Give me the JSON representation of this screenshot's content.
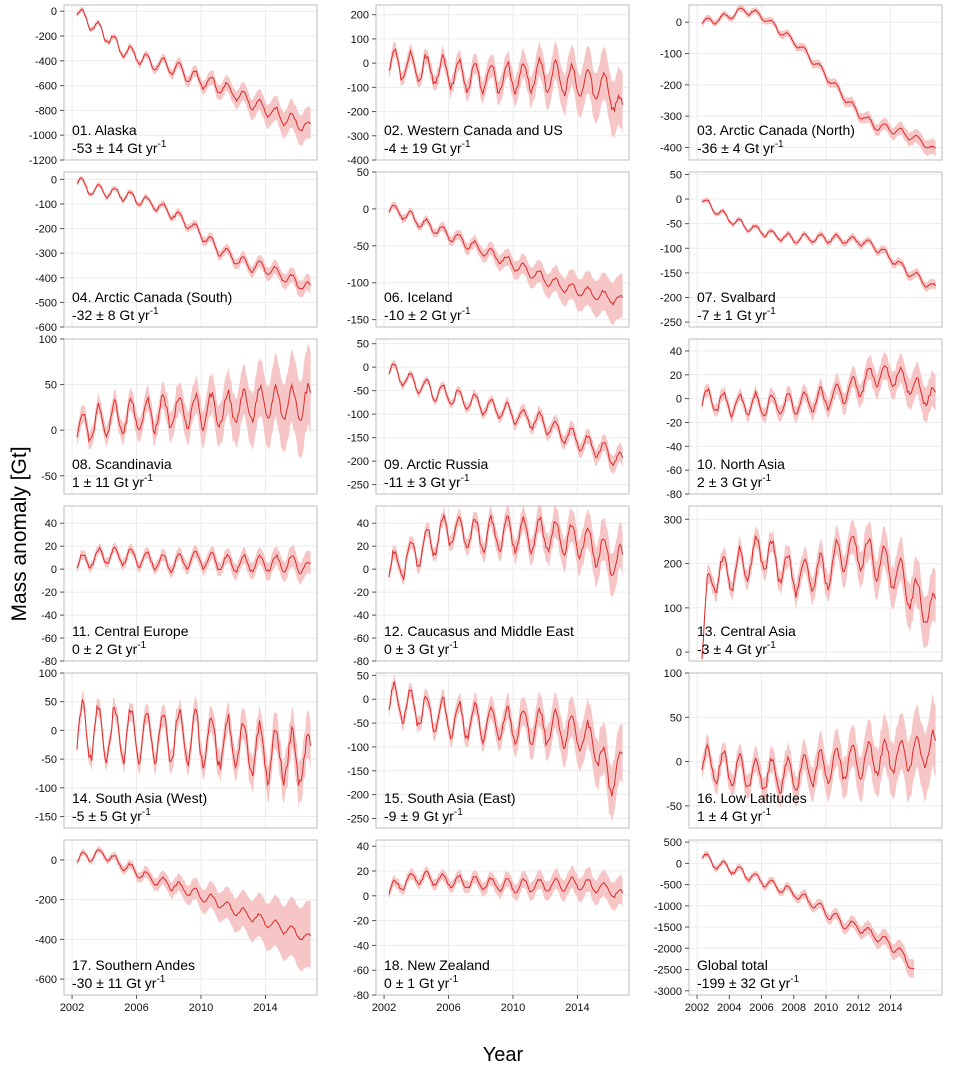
{
  "figure": {
    "ylabel": "Mass anomaly [Gt]",
    "xlabel": "Year"
  },
  "style": {
    "line_color": "#dd2a2a",
    "band_color": "#f6c6c6",
    "frame_color": "#bdbdbd",
    "grid_color": "#ececec"
  },
  "chart_data": [
    {
      "type": "line",
      "title": "01. Alaska",
      "rate": "-53 ± 14 Gt yr",
      "rate_unit_exp": "-1",
      "ylim": [
        -1200,
        50
      ],
      "yticks": [
        0,
        -200,
        -400,
        -600,
        -800,
        -1000,
        -1200
      ],
      "xticks": [],
      "x_range": [
        2002.3,
        2016.8
      ],
      "trend": {
        "x": [
          2002.3,
          2003,
          2004,
          2005,
          2006,
          2007,
          2008,
          2009,
          2010,
          2011,
          2012,
          2013,
          2014,
          2015,
          2016,
          2016.6
        ],
        "y": [
          0,
          -80,
          -180,
          -300,
          -360,
          -420,
          -440,
          -500,
          -560,
          -600,
          -650,
          -720,
          -790,
          -850,
          -900,
          -950
        ]
      },
      "seasonal_amplitude": 55,
      "band": [
        20,
        130
      ]
    },
    {
      "type": "line",
      "title": "02. Western Canada and US",
      "rate": "-4 ± 19 Gt yr",
      "rate_unit_exp": "-1",
      "ylim": [
        -400,
        240
      ],
      "yticks": [
        200,
        100,
        0,
        -100,
        -200,
        -300,
        -400
      ],
      "xticks": [],
      "x_range": [
        2002.3,
        2016.8
      ],
      "trend": {
        "x": [
          2002.3,
          2004,
          2006,
          2008,
          2010,
          2012,
          2014,
          2016,
          2016.6
        ],
        "y": [
          0,
          -20,
          -40,
          -60,
          -60,
          -50,
          -80,
          -100,
          -200
        ]
      },
      "seasonal_amplitude": 60,
      "band": [
        30,
        120
      ]
    },
    {
      "type": "line",
      "title": "03. Arctic Canada (North)",
      "rate": "-36 ± 4 Gt yr",
      "rate_unit_exp": "-1",
      "ylim": [
        -440,
        55
      ],
      "yticks": [
        0,
        -100,
        -200,
        -300,
        -400
      ],
      "xticks": [],
      "x_range": [
        2002.3,
        2016.8
      ],
      "trend": {
        "x": [
          2002.3,
          2003,
          2004,
          2005,
          2006,
          2007,
          2008,
          2009,
          2010,
          2011,
          2012,
          2013,
          2014,
          2015,
          2016,
          2016.6
        ],
        "y": [
          0,
          5,
          20,
          40,
          20,
          -20,
          -60,
          -110,
          -170,
          -230,
          -290,
          -330,
          -340,
          -360,
          -380,
          -410
        ]
      },
      "seasonal_amplitude": 12,
      "band": [
        10,
        25
      ]
    },
    {
      "type": "line",
      "title": "04. Arctic Canada (South)",
      "rate": "-32 ± 8 Gt yr",
      "rate_unit_exp": "-1",
      "ylim": [
        -600,
        30
      ],
      "yticks": [
        0,
        -100,
        -200,
        -300,
        -400,
        -500,
        -600
      ],
      "xticks": [],
      "x_range": [
        2002.3,
        2016.8
      ],
      "trend": {
        "x": [
          2002.3,
          2003,
          2004,
          2005,
          2006,
          2007,
          2008,
          2009,
          2010,
          2011,
          2012,
          2013,
          2014,
          2015,
          2016,
          2016.6
        ],
        "y": [
          0,
          -40,
          -50,
          -60,
          -80,
          -100,
          -130,
          -170,
          -220,
          -280,
          -320,
          -350,
          -360,
          -390,
          -420,
          -440
        ]
      },
      "seasonal_amplitude": 22,
      "band": [
        10,
        35
      ]
    },
    {
      "type": "line",
      "title": "06. Iceland",
      "rate": "-10 ± 2 Gt yr",
      "rate_unit_exp": "-1",
      "ylim": [
        -160,
        50
      ],
      "yticks": [
        50,
        0,
        -50,
        -100,
        -150
      ],
      "xticks": [],
      "x_range": [
        2002.3,
        2016.8
      ],
      "trend": {
        "x": [
          2002.3,
          2003,
          2004,
          2005,
          2006,
          2007,
          2008,
          2009,
          2010,
          2011,
          2012,
          2013,
          2014,
          2015,
          2016,
          2016.6
        ],
        "y": [
          0,
          -5,
          -15,
          -25,
          -35,
          -45,
          -55,
          -65,
          -75,
          -85,
          -95,
          -105,
          -110,
          -115,
          -120,
          -125
        ]
      },
      "seasonal_amplitude": 7,
      "band": [
        5,
        30
      ]
    },
    {
      "type": "line",
      "title": "07. Svalbard",
      "rate": "-7 ± 1 Gt yr",
      "rate_unit_exp": "-1",
      "ylim": [
        -260,
        55
      ],
      "yticks": [
        50,
        0,
        -50,
        -100,
        -150,
        -200,
        -250
      ],
      "xticks": [],
      "x_range": [
        2002.3,
        2016.8
      ],
      "trend": {
        "x": [
          2002.3,
          2003,
          2004,
          2005,
          2006,
          2007,
          2008,
          2009,
          2010,
          2011,
          2012,
          2013,
          2014,
          2015,
          2016,
          2016.6
        ],
        "y": [
          0,
          -20,
          -40,
          -55,
          -65,
          -75,
          -80,
          -80,
          -80,
          -82,
          -85,
          -95,
          -120,
          -145,
          -165,
          -180
        ]
      },
      "seasonal_amplitude": 8,
      "band": [
        5,
        10
      ]
    },
    {
      "type": "line",
      "title": "08. Scandinavia",
      "rate": "1 ± 11 Gt yr",
      "rate_unit_exp": "-1",
      "ylim": [
        -70,
        100
      ],
      "yticks": [
        100,
        50,
        0,
        -50
      ],
      "xticks": [],
      "x_range": [
        2002.3,
        2016.8
      ],
      "trend": {
        "x": [
          2002.3,
          2004,
          2006,
          2008,
          2010,
          2012,
          2014,
          2016,
          2016.6
        ],
        "y": [
          0,
          10,
          15,
          20,
          20,
          25,
          30,
          30,
          30
        ]
      },
      "seasonal_amplitude": 18,
      "band": [
        10,
        45
      ]
    },
    {
      "type": "line",
      "title": "09. Arctic Russia",
      "rate": "-11 ± 3 Gt yr",
      "rate_unit_exp": "-1",
      "ylim": [
        -270,
        60
      ],
      "yticks": [
        50,
        0,
        -50,
        -100,
        -150,
        -200,
        -250
      ],
      "xticks": [],
      "x_range": [
        2002.3,
        2016.8
      ],
      "trend": {
        "x": [
          2002.3,
          2003,
          2004,
          2005,
          2006,
          2007,
          2008,
          2009,
          2010,
          2011,
          2012,
          2013,
          2014,
          2015,
          2016,
          2016.6
        ],
        "y": [
          0,
          -20,
          -35,
          -50,
          -60,
          -70,
          -80,
          -90,
          -100,
          -110,
          -120,
          -140,
          -155,
          -170,
          -185,
          -200
        ]
      },
      "seasonal_amplitude": 18,
      "band": [
        8,
        20
      ]
    },
    {
      "type": "line",
      "title": "10. North Asia",
      "rate": "2 ± 3 Gt yr",
      "rate_unit_exp": "-1",
      "ylim": [
        -80,
        50
      ],
      "yticks": [
        40,
        20,
        0,
        -20,
        -40,
        -60,
        -80
      ],
      "xticks": [],
      "x_range": [
        2002.3,
        2016.8
      ],
      "trend": {
        "x": [
          2002.3,
          2004,
          2006,
          2008,
          2010,
          2011,
          2012,
          2013,
          2014,
          2015,
          2016,
          2016.6
        ],
        "y": [
          0,
          -5,
          -5,
          -5,
          0,
          5,
          10,
          20,
          20,
          15,
          5,
          0
        ]
      },
      "seasonal_amplitude": 9,
      "band": [
        5,
        15
      ]
    },
    {
      "type": "line",
      "title": "11. Central Europe",
      "rate": "0 ± 2 Gt yr",
      "rate_unit_exp": "-1",
      "ylim": [
        -80,
        55
      ],
      "yticks": [
        40,
        20,
        0,
        -20,
        -40,
        -60,
        -80
      ],
      "xticks": [],
      "x_range": [
        2002.3,
        2016.8
      ],
      "trend": {
        "x": [
          2002.3,
          2004,
          2006,
          2008,
          2010,
          2012,
          2014,
          2016,
          2016.6
        ],
        "y": [
          5,
          12,
          10,
          5,
          8,
          5,
          5,
          5,
          0
        ]
      },
      "seasonal_amplitude": 7,
      "band": [
        4,
        10
      ]
    },
    {
      "type": "line",
      "title": "12. Caucasus and Middle East",
      "rate": "0 ± 3 Gt yr",
      "rate_unit_exp": "-1",
      "ylim": [
        -80,
        55
      ],
      "yticks": [
        40,
        20,
        0,
        -20,
        -40,
        -60,
        -80
      ],
      "xticks": [],
      "x_range": [
        2002.3,
        2016.8
      ],
      "trend": {
        "x": [
          2002.3,
          2003,
          2004,
          2005,
          2006,
          2008,
          2010,
          2012,
          2014,
          2015,
          2016,
          2016.6
        ],
        "y": [
          0,
          5,
          15,
          25,
          35,
          30,
          30,
          30,
          25,
          20,
          10,
          5
        ]
      },
      "seasonal_amplitude": 14,
      "band": [
        6,
        20
      ]
    },
    {
      "type": "line",
      "title": "13. Central Asia",
      "rate": "-3 ± 4 Gt yr",
      "rate_unit_exp": "-1",
      "ylim": [
        -20,
        330
      ],
      "yticks": [
        300,
        200,
        100,
        0
      ],
      "xticks": [],
      "x_range": [
        2002.3,
        2016.8
      ],
      "trend": {
        "x": [
          2002.3,
          2002.6,
          2003,
          2004,
          2005,
          2006,
          2007,
          2008,
          2010,
          2011,
          2012,
          2013,
          2014,
          2015,
          2016,
          2016.6
        ],
        "y": [
          0,
          120,
          180,
          180,
          200,
          230,
          200,
          170,
          180,
          220,
          230,
          210,
          190,
          150,
          110,
          90
        ]
      },
      "seasonal_amplitude": 40,
      "band": [
        20,
        60
      ]
    },
    {
      "type": "line",
      "title": "14. South Asia (West)",
      "rate": "-5 ± 5 Gt yr",
      "rate_unit_exp": "-1",
      "ylim": [
        -170,
        100
      ],
      "yticks": [
        100,
        50,
        0,
        -50,
        -100,
        -150
      ],
      "xticks": [],
      "x_range": [
        2002.3,
        2016.8
      ],
      "trend": {
        "x": [
          2002.3,
          2004,
          2006,
          2008,
          2010,
          2012,
          2014,
          2016,
          2016.6
        ],
        "y": [
          0,
          -5,
          -10,
          -10,
          -15,
          -20,
          -40,
          -50,
          -50
        ]
      },
      "seasonal_amplitude": 45,
      "band": [
        15,
        40
      ]
    },
    {
      "type": "line",
      "title": "15. South Asia (East)",
      "rate": "-9 ± 9 Gt yr",
      "rate_unit_exp": "-1",
      "ylim": [
        -270,
        55
      ],
      "yticks": [
        50,
        0,
        -50,
        -100,
        -150,
        -200,
        -250
      ],
      "xticks": [],
      "x_range": [
        2002.3,
        2016.8
      ],
      "trend": {
        "x": [
          2002.3,
          2004,
          2006,
          2008,
          2010,
          2012,
          2014,
          2015,
          2016,
          2016.6
        ],
        "y": [
          0,
          -20,
          -40,
          -50,
          -55,
          -60,
          -70,
          -90,
          -170,
          -140
        ]
      },
      "seasonal_amplitude": 35,
      "band": [
        15,
        60
      ]
    },
    {
      "type": "line",
      "title": "16. Low Latitudes",
      "rate": "1 ± 4 Gt yr",
      "rate_unit_exp": "-1",
      "ylim": [
        -75,
        100
      ],
      "yticks": [
        100,
        50,
        0,
        -50
      ],
      "xticks": [],
      "x_range": [
        2002.3,
        2016.8
      ],
      "trend": {
        "x": [
          2002.3,
          2004,
          2006,
          2008,
          2010,
          2012,
          2014,
          2016,
          2016.6
        ],
        "y": [
          0,
          -10,
          -15,
          -15,
          -5,
          0,
          5,
          10,
          15
        ]
      },
      "seasonal_amplitude": 18,
      "band": [
        12,
        40
      ]
    },
    {
      "type": "line",
      "title": "17. Southern Andes",
      "rate": "-30 ± 11 Gt yr",
      "rate_unit_exp": "-1",
      "ylim": [
        -680,
        100
      ],
      "yticks": [
        0,
        -200,
        -400,
        -600
      ],
      "xticks": [
        2002,
        2006,
        2010,
        2014
      ],
      "x_range": [
        2002.3,
        2016.8
      ],
      "trend": {
        "x": [
          2002.3,
          2003,
          2004,
          2005,
          2006,
          2007,
          2008,
          2009,
          2010,
          2011,
          2012,
          2013,
          2014,
          2015,
          2016,
          2016.6
        ],
        "y": [
          0,
          20,
          30,
          -20,
          -60,
          -100,
          -120,
          -150,
          -180,
          -210,
          -250,
          -280,
          -310,
          -340,
          -370,
          -400
        ]
      },
      "seasonal_amplitude": 25,
      "band": [
        15,
        170
      ]
    },
    {
      "type": "line",
      "title": "18. New Zealand",
      "rate": "0 ± 1 Gt yr",
      "rate_unit_exp": "-1",
      "ylim": [
        -80,
        45
      ],
      "yticks": [
        40,
        20,
        0,
        -20,
        -40,
        -60,
        -80
      ],
      "xticks": [
        2002,
        2006,
        2010,
        2014
      ],
      "x_range": [
        2002.3,
        2016.8
      ],
      "trend": {
        "x": [
          2002.3,
          2004,
          2006,
          2008,
          2010,
          2012,
          2014,
          2016,
          2016.6
        ],
        "y": [
          5,
          15,
          12,
          10,
          8,
          8,
          10,
          5,
          0
        ]
      },
      "seasonal_amplitude": 5,
      "band": [
        4,
        12
      ]
    },
    {
      "type": "line",
      "title": "Global total",
      "rate": "-199 ± 32 Gt yr",
      "rate_unit_exp": "-1",
      "ylim": [
        -3100,
        550
      ],
      "yticks": [
        500,
        0,
        -500,
        -1000,
        -1500,
        -2000,
        -2500,
        -3000
      ],
      "xticks": [
        2002,
        2004,
        2006,
        2008,
        2010,
        2012,
        2014
      ],
      "x_range": [
        2002.3,
        2015.5
      ],
      "trend": {
        "x": [
          2002.3,
          2003,
          2004,
          2005,
          2006,
          2007,
          2008,
          2009,
          2010,
          2011,
          2012,
          2013,
          2014,
          2015,
          2015.5
        ],
        "y": [
          200,
          0,
          -100,
          -250,
          -400,
          -550,
          -700,
          -900,
          -1150,
          -1400,
          -1500,
          -1700,
          -1900,
          -2250,
          -2550
        ]
      },
      "seasonal_amplitude": 110,
      "band": [
        70,
        220
      ]
    }
  ]
}
